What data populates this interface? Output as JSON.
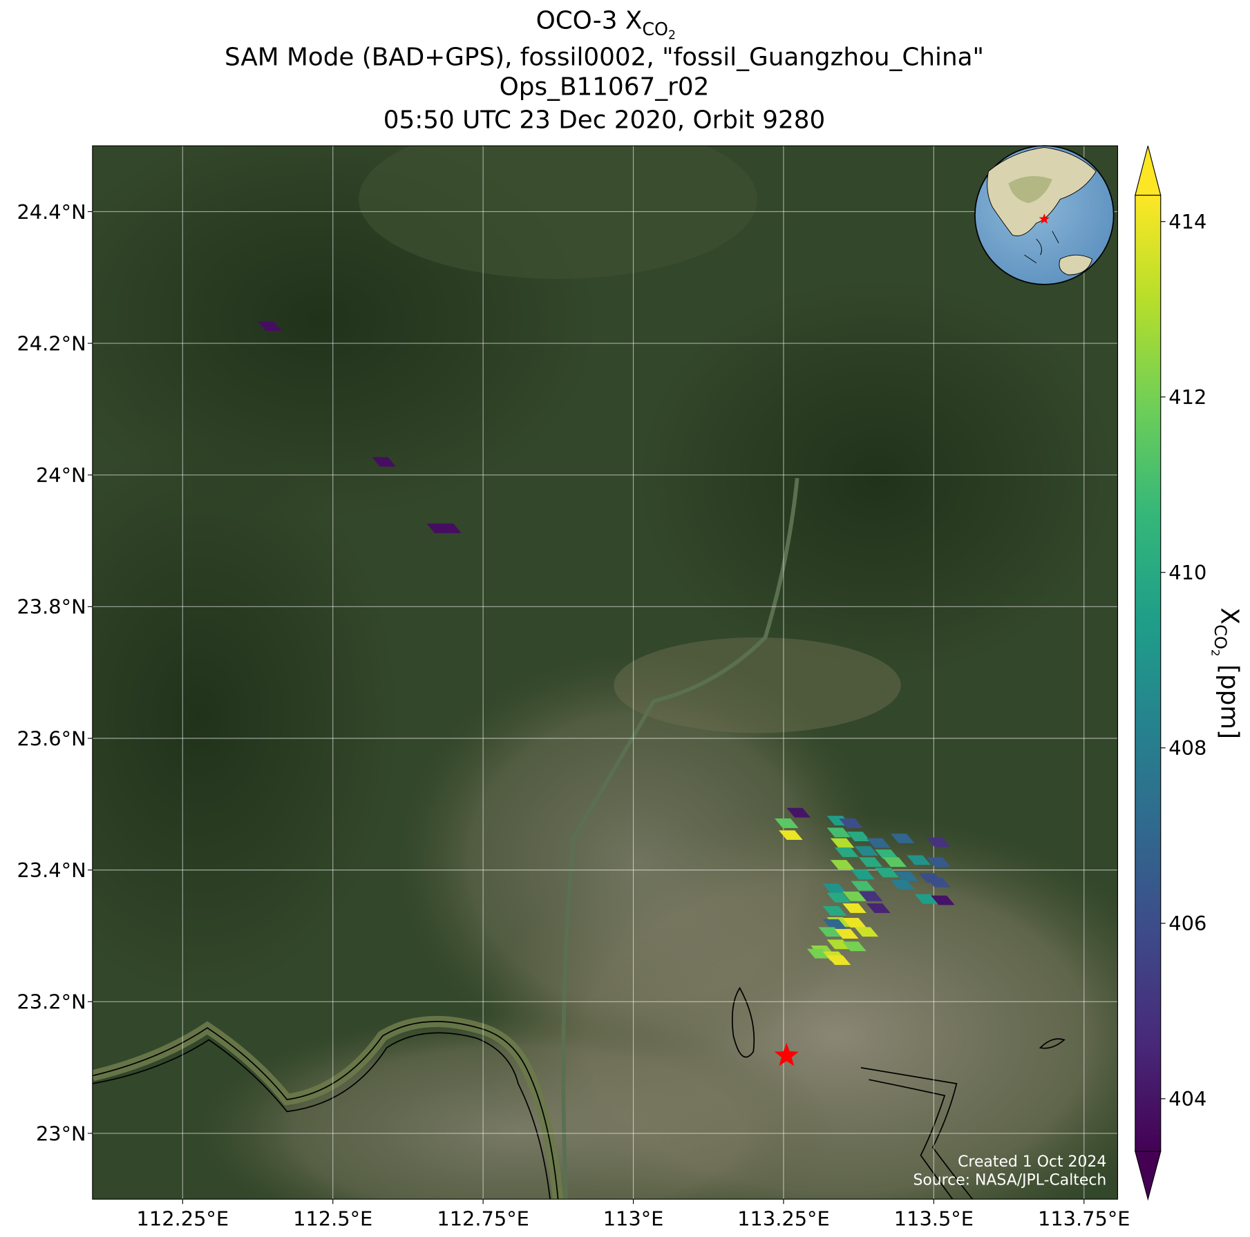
{
  "chart_data": {
    "type": "map",
    "title": {
      "prefix": "OCO-3 X",
      "sub": "CO",
      "subsub": "2"
    },
    "subtitle_lines": [
      "SAM Mode (BAD+GPS), fossil0002, \"fossil_Guangzhou_China\"",
      "Ops_B11067_r02",
      "05:50 UTC 23 Dec 2020, Orbit 9280"
    ],
    "xlim": [
      112.1,
      113.806
    ],
    "ylim": [
      22.9,
      24.5
    ],
    "xticks": [
      {
        "value": 112.25,
        "label": "112.25°E"
      },
      {
        "value": 112.5,
        "label": "112.5°E"
      },
      {
        "value": 112.75,
        "label": "112.75°E"
      },
      {
        "value": 113,
        "label": "113°E"
      },
      {
        "value": 113.25,
        "label": "113.25°E"
      },
      {
        "value": 113.5,
        "label": "113.5°E"
      },
      {
        "value": 113.75,
        "label": "113.75°E"
      }
    ],
    "yticks": [
      {
        "value": 23,
        "label": "23°N"
      },
      {
        "value": 23.2,
        "label": "23.2°N"
      },
      {
        "value": 23.4,
        "label": "23.4°N"
      },
      {
        "value": 23.6,
        "label": "23.6°N"
      },
      {
        "value": 23.8,
        "label": "23.8°N"
      },
      {
        "value": 24,
        "label": "24°N"
      },
      {
        "value": 24.2,
        "label": "24.2°N"
      },
      {
        "value": 24.4,
        "label": "24.4°N"
      }
    ],
    "grid": true,
    "colormap": "viridis",
    "clim": [
      403.4,
      414.3
    ],
    "colorbar_ticks": [
      404,
      406,
      408,
      410,
      412,
      414
    ],
    "colorbar_label": {
      "symbol": "X",
      "sub": "CO",
      "subsub": "2",
      "unit": "[ppm]"
    },
    "target": {
      "lon": 113.255,
      "lat": 23.118,
      "color": "#ff0000"
    },
    "x": [
      112.395,
      112.585,
      112.676,
      112.694,
      113.275,
      113.255,
      113.342,
      113.362,
      113.262,
      113.342,
      113.375,
      113.348,
      113.408,
      113.448,
      113.508,
      113.355,
      113.388,
      113.422,
      113.348,
      113.395,
      113.435,
      113.475,
      113.508,
      113.382,
      113.422,
      113.455,
      113.495,
      113.335,
      113.382,
      113.448,
      113.508,
      113.342,
      113.368,
      113.395,
      113.488,
      113.515,
      113.335,
      113.368,
      113.408,
      113.342,
      113.368,
      113.335,
      113.328,
      113.355,
      113.388,
      113.315,
      113.342,
      113.368,
      113.309,
      113.335,
      113.342
    ],
    "y": [
      24.226,
      24.02,
      23.919,
      23.919,
      23.487,
      23.471,
      23.475,
      23.471,
      23.453,
      23.457,
      23.451,
      23.441,
      23.441,
      23.448,
      23.442,
      23.427,
      23.429,
      23.424,
      23.408,
      23.412,
      23.412,
      23.415,
      23.412,
      23.393,
      23.396,
      23.39,
      23.388,
      23.372,
      23.376,
      23.378,
      23.381,
      23.358,
      23.36,
      23.36,
      23.356,
      23.354,
      23.338,
      23.342,
      23.342,
      23.321,
      23.32,
      23.318,
      23.306,
      23.303,
      23.306,
      23.278,
      23.287,
      23.284,
      23.273,
      23.269,
      23.263
    ],
    "values": [
      403.8,
      403.8,
      403.8,
      403.8,
      404,
      411.5,
      409.5,
      406,
      414,
      411,
      410,
      413,
      407,
      407,
      405,
      410,
      408.5,
      410.5,
      412.5,
      410,
      411.5,
      409,
      406.5,
      409.5,
      410,
      407.5,
      406,
      409,
      411,
      408,
      406,
      410,
      412,
      405,
      409.5,
      404,
      410,
      414,
      404.5,
      413,
      414,
      407,
      411.5,
      414,
      413.5,
      412.5,
      413,
      412,
      412,
      413.5,
      414
    ],
    "annotations": [
      "Created 1 Oct 2024",
      "Source: NASA/JPL-Caltech"
    ]
  }
}
